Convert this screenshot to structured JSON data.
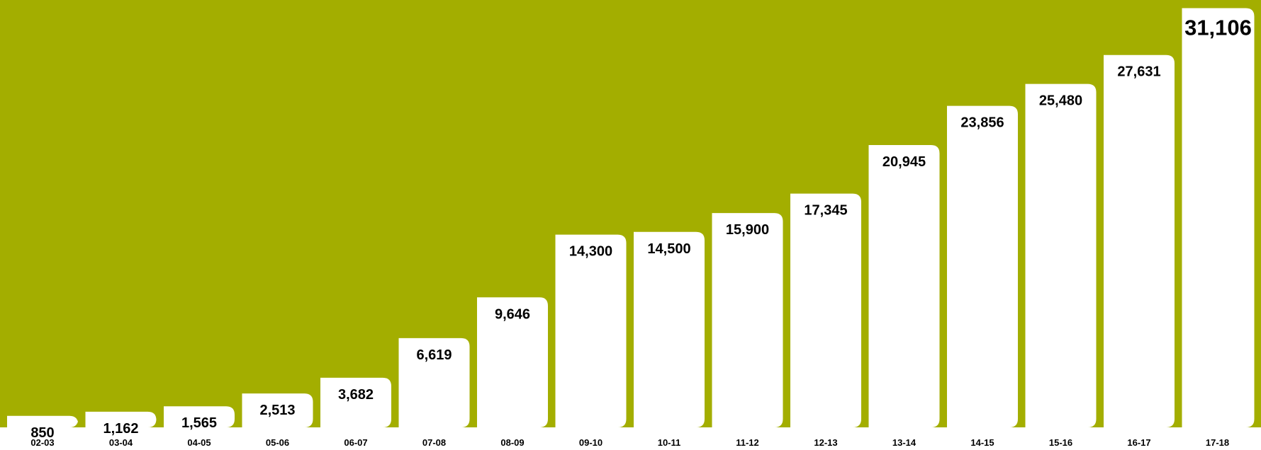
{
  "chart_data": {
    "type": "bar",
    "categories": [
      "02-03",
      "03-04",
      "04-05",
      "05-06",
      "06-07",
      "07-08",
      "08-09",
      "09-10",
      "10-11",
      "11-12",
      "12-13",
      "13-14",
      "14-15",
      "15-16",
      "16-17",
      "17-18"
    ],
    "values": [
      850,
      1162,
      1565,
      2513,
      3682,
      6619,
      9646,
      14300,
      14500,
      15900,
      17345,
      20945,
      23856,
      25480,
      27631,
      31106
    ],
    "value_labels": [
      "850",
      "1,162",
      "1,565",
      "2,513",
      "3,682",
      "6,619",
      "9,646",
      "14,300",
      "14,500",
      "15,900",
      "17,345",
      "20,945",
      "23,856",
      "25,480",
      "27,631",
      "31,106"
    ],
    "ylim": [
      0,
      31500
    ],
    "grid": false,
    "legend": "none",
    "title": "",
    "xlabel": "",
    "ylabel": "",
    "colors": {
      "background": "#a3ae00",
      "bar": "#ffffff",
      "text": "#000000",
      "axis_band": "#ffffff"
    },
    "highlight_last": true
  }
}
